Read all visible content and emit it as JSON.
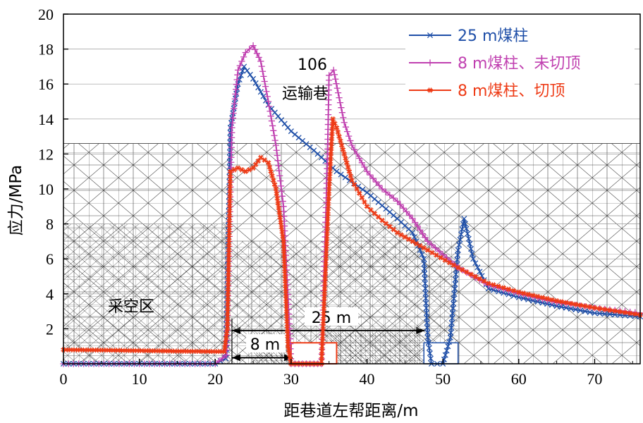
{
  "chart_data": {
    "type": "line",
    "xlabel": "距巷道左帮距离/m",
    "ylabel": "应力/MPa",
    "xlim": [
      0,
      76
    ],
    "ylim": [
      0,
      20
    ],
    "xticks": [
      "0",
      "10",
      "20",
      "30",
      "40",
      "50",
      "60",
      "70"
    ],
    "yticks": [
      "2",
      "4",
      "6",
      "8",
      "10",
      "12",
      "14",
      "16",
      "18",
      "20"
    ],
    "legend_position": "top-right",
    "annotations": {
      "roadway_number": "106",
      "roadway_name": "运输巷",
      "goaf": "采空区",
      "span_8m": "8 m",
      "span_25m": "25 m"
    },
    "series": [
      {
        "name": "25 m煤柱",
        "color": "#1f4fa8",
        "marker": "x",
        "x": [
          0,
          10,
          20,
          21.4,
          22,
          23,
          23.8,
          25,
          27,
          30,
          33,
          36,
          40,
          44,
          46,
          47.5,
          48,
          48.5,
          50,
          51,
          52,
          52.8,
          54,
          56,
          60,
          65,
          70,
          76
        ],
        "y": [
          0,
          0,
          0,
          0.3,
          13.5,
          16.0,
          17.0,
          16.3,
          14.8,
          13.3,
          12.2,
          11.0,
          9.8,
          8.3,
          7.5,
          6.0,
          1.5,
          0,
          0,
          1.5,
          6.5,
          8.3,
          6.0,
          4.3,
          3.8,
          3.3,
          2.9,
          2.7
        ]
      },
      {
        "name": "8 m煤柱、未切顶",
        "color": "#c040b0",
        "marker": "+",
        "x": [
          0,
          10,
          20,
          21.5,
          22.2,
          23,
          24,
          25,
          26,
          27,
          28,
          29,
          29.8,
          30,
          31,
          32,
          33,
          34,
          34.8,
          35,
          35.6,
          36.2,
          37,
          38,
          40,
          42,
          44,
          46,
          48,
          52,
          56,
          60,
          65,
          70,
          76
        ],
        "y": [
          0,
          0,
          0,
          0.5,
          13.5,
          16.8,
          17.8,
          18.2,
          17.3,
          15.0,
          12.5,
          9.0,
          2.0,
          0,
          0,
          0,
          0,
          0,
          12.0,
          16.5,
          16.8,
          15.5,
          13.8,
          12.5,
          11.0,
          10.0,
          9.3,
          8.3,
          7.0,
          5.5,
          4.5,
          4.0,
          3.5,
          3.2,
          2.9
        ]
      },
      {
        "name": "8 m煤柱、切顶",
        "color": "#ee3b16",
        "marker": "#",
        "x": [
          0,
          5,
          10,
          15,
          20,
          21.2,
          21.6,
          22,
          23,
          24,
          25,
          26,
          27,
          28,
          29,
          29.6,
          30,
          31,
          32,
          33,
          34,
          35,
          35.5,
          36,
          37,
          38,
          40,
          42,
          44,
          46,
          48,
          52,
          56,
          60,
          65,
          70,
          76
        ],
        "y": [
          0.8,
          0.78,
          0.75,
          0.72,
          0.7,
          0.7,
          2.0,
          11.0,
          11.2,
          11.0,
          11.2,
          11.8,
          11.5,
          10.0,
          7.0,
          1.0,
          0,
          0,
          0,
          0,
          0,
          10.0,
          14.0,
          13.5,
          12.0,
          10.5,
          9.0,
          8.2,
          7.5,
          7.0,
          6.5,
          5.5,
          4.6,
          4.1,
          3.6,
          3.2,
          2.8
        ]
      }
    ]
  }
}
